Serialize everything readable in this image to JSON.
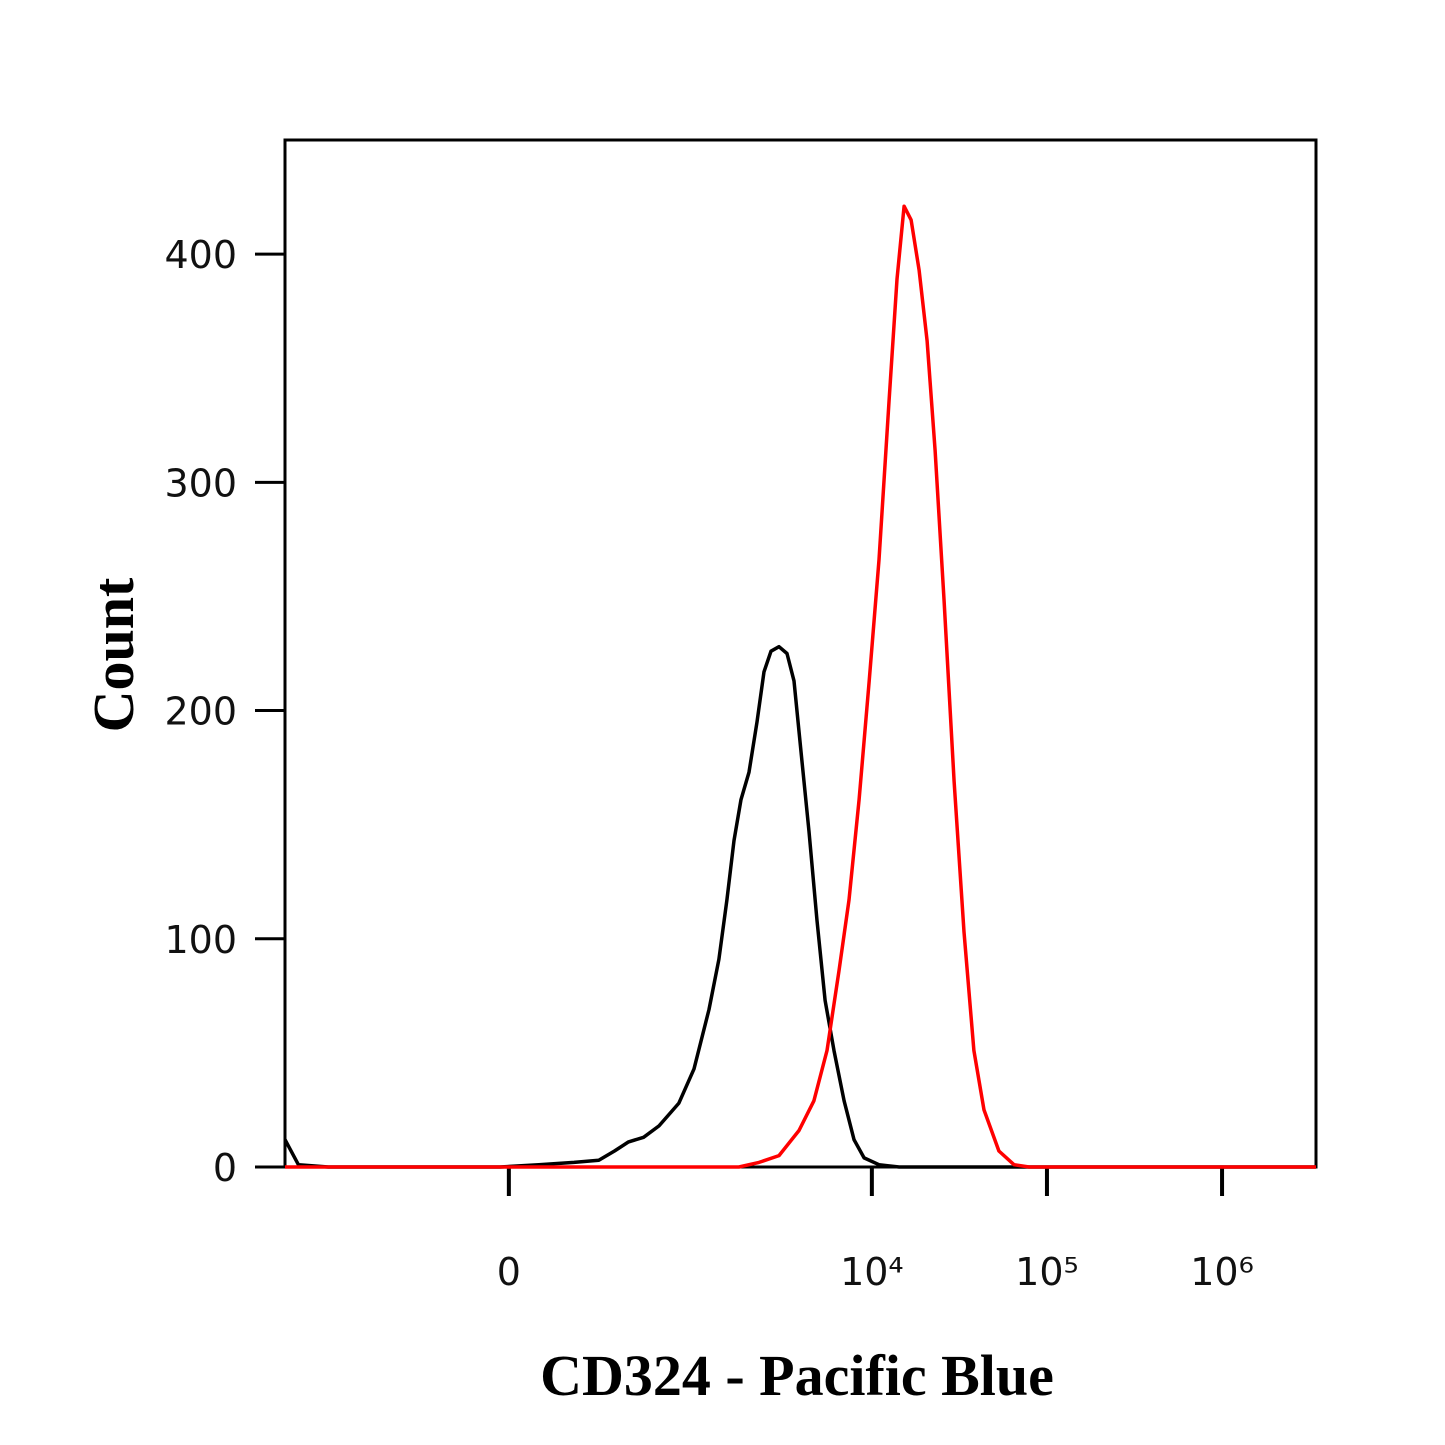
{
  "chart_data": {
    "type": "line",
    "xlabel": "CD324 - Pacific Blue",
    "ylabel": "Count",
    "xscale": "biexponential",
    "xlim": [
      -1600,
      3440000
    ],
    "ylim": [
      0,
      450
    ],
    "xticks": [
      0,
      {
        "value": 10000,
        "label": "10⁴"
      },
      {
        "value": 100000,
        "label": "10⁵"
      },
      {
        "value": 1000000,
        "label": "10⁶"
      }
    ],
    "yticks": [
      0,
      100,
      200,
      300,
      400
    ],
    "series": [
      {
        "color": "#000000",
        "x": [
          -1600,
          -1340,
          -900,
          -20,
          68,
          163,
          250,
          318,
          390,
          483,
          597,
          782,
          957,
          1168,
          1332,
          1482,
          1627,
          1786,
          1984,
          2205,
          2418,
          2653,
          2947,
          3273,
          3591,
          3936,
          4374,
          4861,
          5403,
          6081,
          6939,
          7909,
          9025,
          10985,
          14314,
          3440000
        ],
        "values": [
          12,
          1,
          0,
          0,
          1,
          2,
          3,
          7,
          11,
          13,
          18,
          28,
          43,
          69,
          91,
          117,
          143,
          161,
          173,
          195,
          217,
          226,
          228,
          225,
          213,
          182,
          147,
          108,
          73,
          51,
          29,
          12,
          4,
          1,
          0,
          0
        ]
      },
      {
        "color": "#ff0000",
        "x": [
          -1600,
          1737,
          2265,
          2947,
          3836,
          4664,
          5543,
          6490,
          7402,
          8450,
          9650,
          10985,
          12540,
          13926,
          15278,
          16748,
          18607,
          20669,
          22967,
          25874,
          29474,
          33580,
          38279,
          43687,
          53184,
          64828,
          79041,
          3440000
        ],
        "values": [
          0,
          0,
          2,
          5,
          16,
          29,
          51,
          86,
          117,
          161,
          213,
          266,
          336,
          389,
          421,
          415,
          393,
          362,
          314,
          248,
          169,
          103,
          51,
          25,
          7,
          1,
          0,
          0
        ]
      }
    ]
  }
}
